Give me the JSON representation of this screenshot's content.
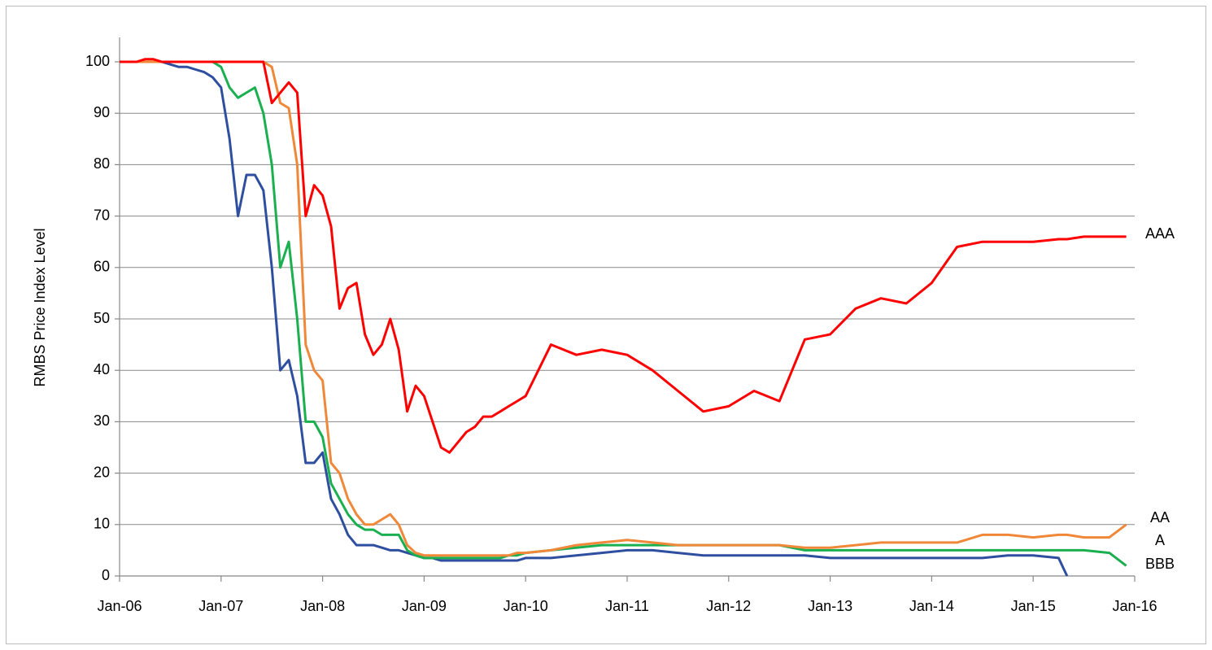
{
  "chart_data": {
    "type": "line",
    "y_label": "RMBS Price Index Level",
    "x": [
      "2006-01",
      "2006-02",
      "2006-03",
      "2006-04",
      "2006-05",
      "2006-06",
      "2006-07",
      "2006-08",
      "2006-09",
      "2006-10",
      "2006-11",
      "2006-12",
      "2007-01",
      "2007-02",
      "2007-03",
      "2007-04",
      "2007-05",
      "2007-06",
      "2007-07",
      "2007-08",
      "2007-09",
      "2007-10",
      "2007-11",
      "2007-12",
      "2008-01",
      "2008-02",
      "2008-03",
      "2008-04",
      "2008-05",
      "2008-06",
      "2008-07",
      "2008-08",
      "2008-09",
      "2008-10",
      "2008-11",
      "2008-12",
      "2009-01",
      "2009-02",
      "2009-03",
      "2009-04",
      "2009-05",
      "2009-06",
      "2009-07",
      "2009-08",
      "2009-09",
      "2009-10",
      "2009-11",
      "2009-12",
      "2010-01",
      "2010-04",
      "2010-07",
      "2010-10",
      "2011-01",
      "2011-04",
      "2011-07",
      "2011-10",
      "2012-01",
      "2012-04",
      "2012-07",
      "2012-10",
      "2013-01",
      "2013-04",
      "2013-07",
      "2013-10",
      "2014-01",
      "2014-04",
      "2014-07",
      "2014-10",
      "2015-01",
      "2015-04",
      "2015-05",
      "2015-07",
      "2015-10",
      "2015-12"
    ],
    "series": [
      {
        "name": "AAA",
        "color": "#ff0000",
        "values": [
          100,
          100,
          100,
          100.5,
          100.5,
          100,
          100,
          100,
          100,
          100,
          100,
          100,
          100,
          100,
          100,
          100,
          100,
          100,
          92,
          94,
          96,
          94,
          70,
          76,
          74,
          68,
          52,
          56,
          57,
          47,
          43,
          45,
          50,
          44,
          32,
          37,
          35,
          30,
          25,
          24,
          26,
          28,
          29,
          31,
          31,
          32,
          33,
          34,
          35,
          45,
          43,
          44,
          43,
          40,
          36,
          32,
          33,
          36,
          34,
          46,
          47,
          52,
          54,
          53,
          57,
          64,
          65,
          65,
          65,
          65.5,
          65.5,
          66,
          66,
          66
        ]
      },
      {
        "name": "AA",
        "color": "#f0883a",
        "values": [
          100,
          100,
          100,
          100,
          100,
          100,
          100,
          100,
          100,
          100,
          100,
          100,
          100,
          100,
          100,
          100,
          100,
          100,
          99,
          92,
          91,
          80,
          45,
          40,
          38,
          22,
          20,
          15,
          12,
          10,
          10,
          11,
          12,
          10,
          6,
          4.5,
          4,
          4,
          4,
          4,
          4,
          4,
          4,
          4,
          4,
          4,
          4,
          4.5,
          4.5,
          5,
          6,
          6.5,
          7,
          6.5,
          6,
          6,
          6,
          6,
          6,
          5.5,
          5.5,
          6,
          6.5,
          6.5,
          6.5,
          6.5,
          8,
          8,
          7.5,
          8,
          8,
          7.5,
          7.5,
          10
        ]
      },
      {
        "name": "A",
        "color": "#1aaf4f",
        "values": [
          100,
          100,
          100,
          100,
          100,
          100,
          100,
          100,
          100,
          100,
          100,
          100,
          99,
          95,
          93,
          94,
          95,
          90,
          80,
          60,
          65,
          50,
          30,
          30,
          27,
          18,
          15,
          12,
          10,
          9,
          9,
          8,
          8,
          8,
          5,
          4,
          3.5,
          3.5,
          3.5,
          3.5,
          3.5,
          3.5,
          3.5,
          3.5,
          3.5,
          3.5,
          4,
          4,
          4.5,
          5,
          5.5,
          6,
          6,
          6,
          6,
          6,
          6,
          6,
          6,
          5,
          5,
          5,
          5,
          5,
          5,
          5,
          5,
          5,
          5,
          5,
          5,
          5,
          4.5,
          2
        ]
      },
      {
        "name": "BBB",
        "color": "#2e4e9f",
        "values": [
          100,
          100,
          100,
          100,
          100,
          100,
          99.5,
          99,
          99,
          98.5,
          98,
          97,
          95,
          85,
          70,
          78,
          78,
          75,
          60,
          40,
          42,
          35,
          22,
          22,
          24,
          15,
          12,
          8,
          6,
          6,
          6,
          5.5,
          5,
          5,
          4.5,
          4,
          3.5,
          3.5,
          3,
          3,
          3,
          3,
          3,
          3,
          3,
          3,
          3,
          3,
          3.5,
          3.5,
          4,
          4.5,
          5,
          5,
          4.5,
          4,
          4,
          4,
          4,
          4,
          3.5,
          3.5,
          3.5,
          3.5,
          3.5,
          3.5,
          3.5,
          4,
          4,
          3.5,
          0,
          null,
          null,
          null
        ]
      }
    ],
    "xlim": [
      "2006-01",
      "2016-01"
    ],
    "xticks": [
      {
        "value": "2006-01",
        "label": "Jan-06"
      },
      {
        "value": "2007-01",
        "label": "Jan-07"
      },
      {
        "value": "2008-01",
        "label": "Jan-08"
      },
      {
        "value": "2009-01",
        "label": "Jan-09"
      },
      {
        "value": "2010-01",
        "label": "Jan-10"
      },
      {
        "value": "2011-01",
        "label": "Jan-11"
      },
      {
        "value": "2012-01",
        "label": "Jan-12"
      },
      {
        "value": "2013-01",
        "label": "Jan-13"
      },
      {
        "value": "2014-01",
        "label": "Jan-14"
      },
      {
        "value": "2015-01",
        "label": "Jan-15"
      },
      {
        "value": "2016-01",
        "label": "Jan-16"
      }
    ],
    "ylim": [
      0,
      100
    ],
    "yticks": [
      0,
      10,
      20,
      30,
      40,
      50,
      60,
      70,
      80,
      90,
      100
    ],
    "grid": true
  }
}
